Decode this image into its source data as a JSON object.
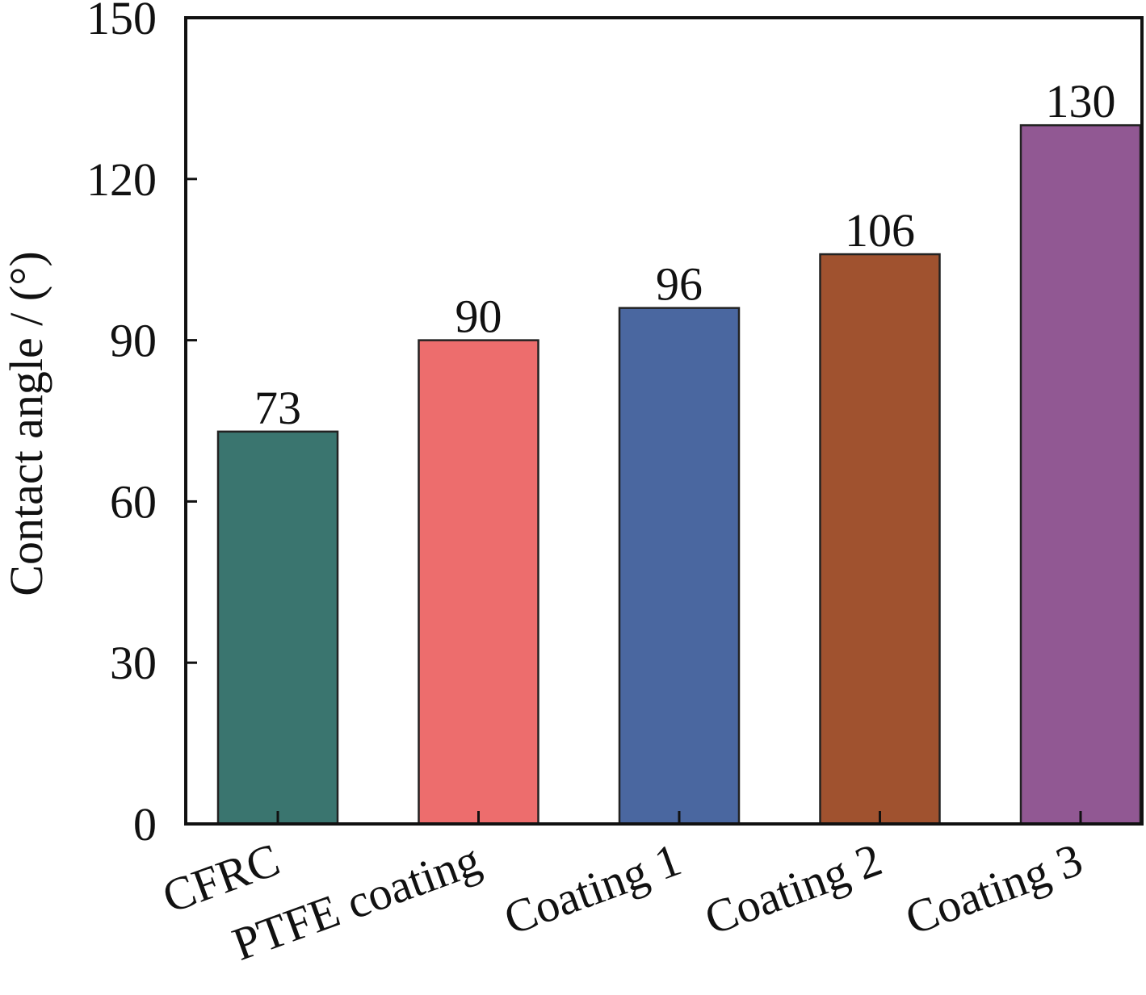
{
  "chart_data": {
    "type": "bar",
    "categories": [
      "CFRC",
      "PTFE coating",
      "Coating 1",
      "Coating 2",
      "Coating 3"
    ],
    "values": [
      73,
      90,
      96,
      106,
      130
    ],
    "data_labels": [
      "73",
      "90",
      "96",
      "106",
      "130"
    ],
    "colors": [
      "#3a756f",
      "#ed6d6d",
      "#4a67a0",
      "#a0522f",
      "#915893"
    ],
    "title": "",
    "xlabel": "",
    "ylabel": "Contact angle / (°)",
    "ylim": [
      0,
      150
    ],
    "yticks": [
      0,
      30,
      60,
      90,
      120,
      150
    ],
    "ytick_labels": [
      "0",
      "30",
      "60",
      "90",
      "120",
      "150"
    ],
    "grid": false,
    "legend": "none"
  }
}
